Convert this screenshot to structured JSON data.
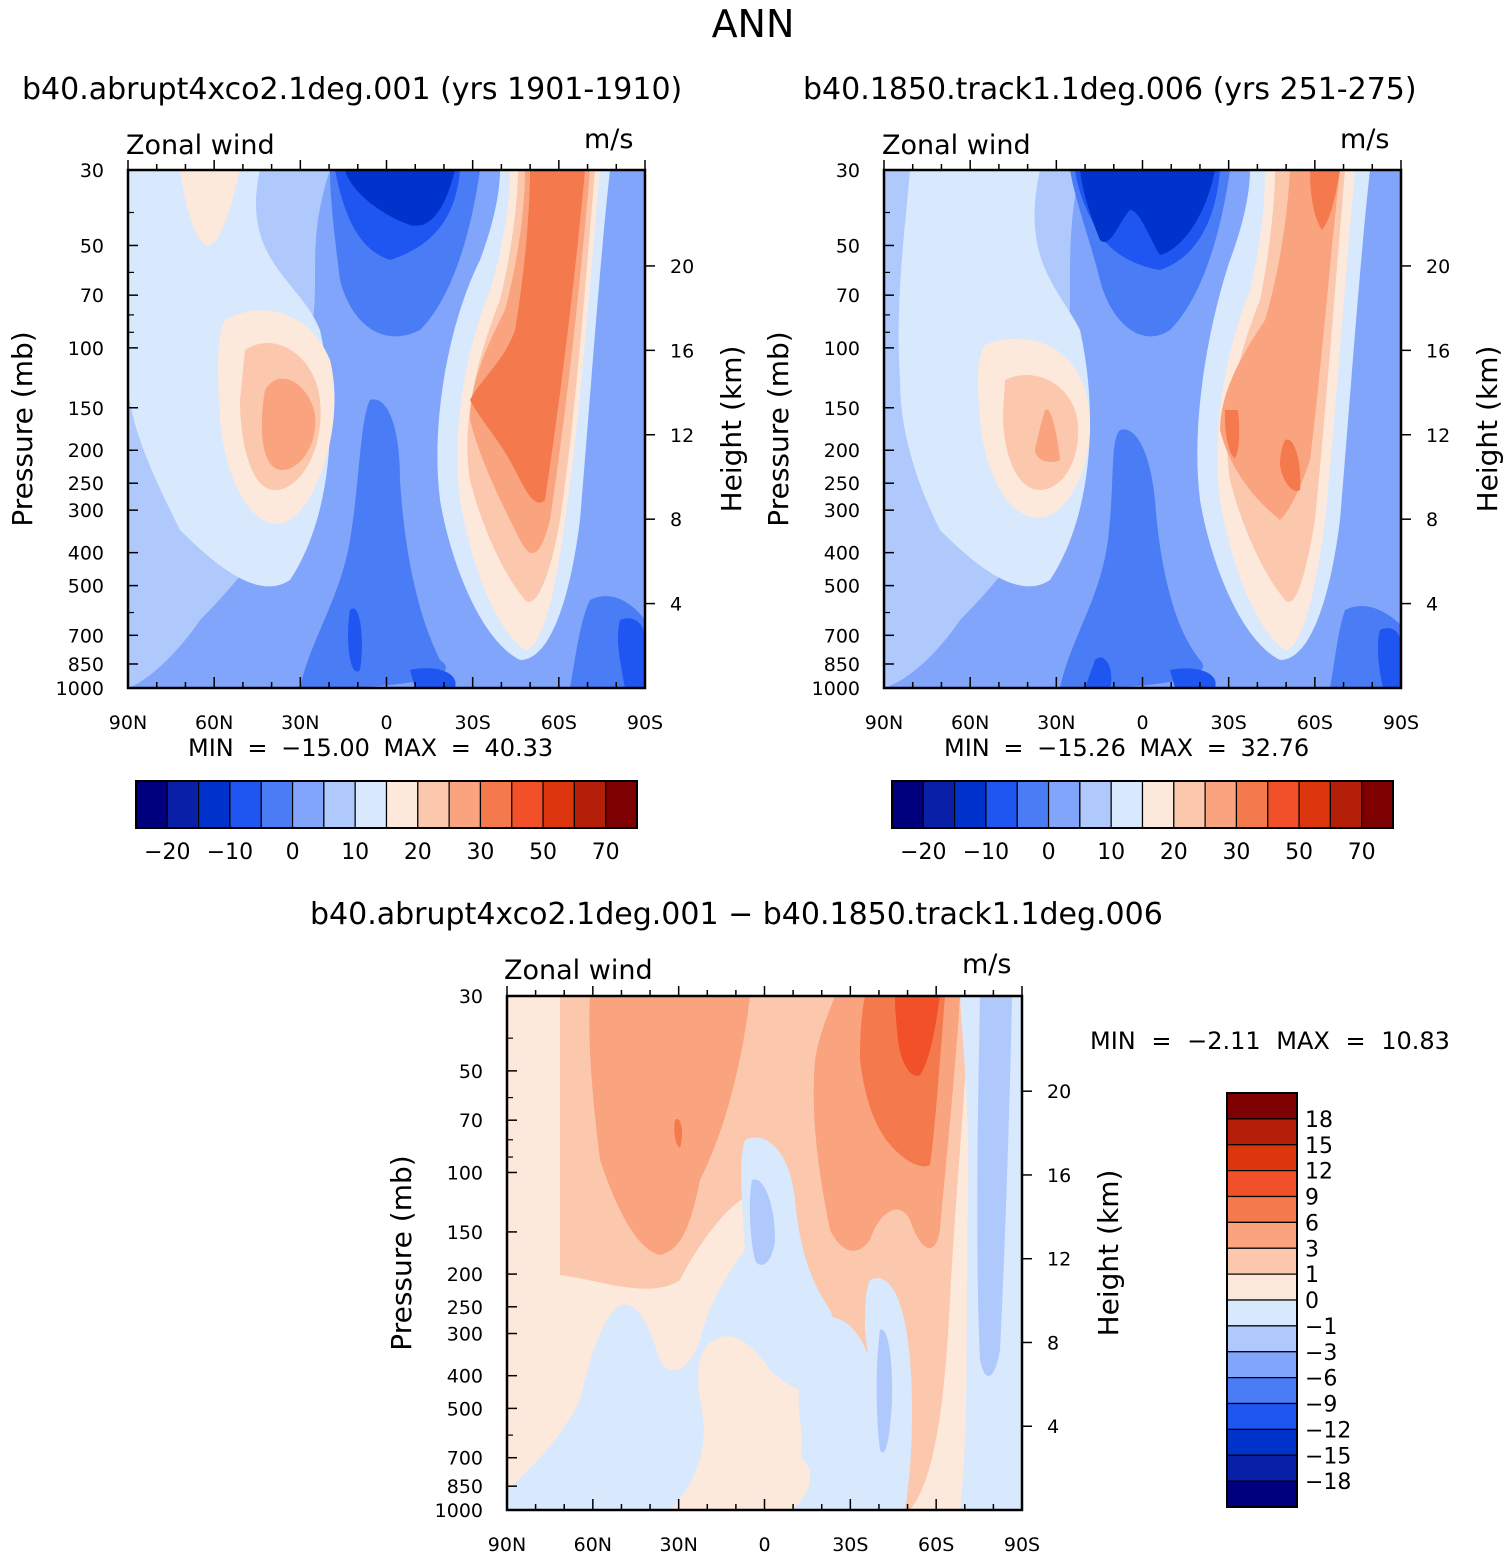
{
  "page": {
    "title": "ANN"
  },
  "chart_data": [
    {
      "type": "heatmap",
      "id": "panel1",
      "title": "b40.abrupt4xco2.1deg.001 (yrs 1901-1910)",
      "left_text": "Zonal wind",
      "units": "m/s",
      "ylabel": "Pressure (mb)",
      "ylabel_right": "Height (km)",
      "min_max": "MIN = −15.00 MAX = 40.33",
      "x_ticks": [
        "90N",
        "60N",
        "30N",
        "0",
        "30S",
        "60S",
        "90S"
      ],
      "y_ticks": [
        "30",
        "50",
        "70",
        "100",
        "150",
        "200",
        "250",
        "300",
        "400",
        "500",
        "700",
        "850",
        "1000"
      ],
      "y_ticks_right": [
        "20",
        "16",
        "12",
        "8",
        "4"
      ],
      "colorbar_labels": [
        "−20",
        "−10",
        "0",
        "10",
        "20",
        "30",
        "50",
        "70"
      ]
    },
    {
      "type": "heatmap",
      "id": "panel2",
      "title": "b40.1850.track1.1deg.006 (yrs 251-275)",
      "left_text": "Zonal wind",
      "units": "m/s",
      "ylabel": "Pressure (mb)",
      "ylabel_right": "Height (km)",
      "min_max": "MIN = −15.26 MAX = 32.76",
      "x_ticks": [
        "90N",
        "60N",
        "30N",
        "0",
        "30S",
        "60S",
        "90S"
      ],
      "y_ticks": [
        "30",
        "50",
        "70",
        "100",
        "150",
        "200",
        "250",
        "300",
        "400",
        "500",
        "700",
        "850",
        "1000"
      ],
      "y_ticks_right": [
        "20",
        "16",
        "12",
        "8",
        "4"
      ],
      "colorbar_labels": [
        "−20",
        "−10",
        "0",
        "10",
        "20",
        "30",
        "50",
        "70"
      ]
    },
    {
      "type": "heatmap",
      "id": "panel3",
      "title": "b40.abrupt4xco2.1deg.001 − b40.1850.track1.1deg.006",
      "left_text": "Zonal wind",
      "units": "m/s",
      "ylabel": "Pressure (mb)",
      "ylabel_right": "Height (km)",
      "min_max": "MIN = −2.11 MAX = 10.83",
      "x_ticks": [
        "90N",
        "60N",
        "30N",
        "0",
        "30S",
        "60S",
        "90S"
      ],
      "y_ticks": [
        "30",
        "50",
        "70",
        "100",
        "150",
        "200",
        "250",
        "300",
        "400",
        "500",
        "700",
        "850",
        "1000"
      ],
      "y_ticks_right": [
        "20",
        "16",
        "12",
        "8",
        "4"
      ],
      "colorbar_labels": [
        "18",
        "15",
        "12",
        "9",
        "6",
        "3",
        "1",
        "0",
        "−1",
        "−3",
        "−6",
        "−9",
        "−12",
        "−15",
        "−18"
      ]
    }
  ],
  "colors": {
    "scale": [
      "#00007f",
      "#0a1fa8",
      "#0033cc",
      "#1f55f0",
      "#4a7cf5",
      "#80a5fa",
      "#b0c9fd",
      "#d8e8fd",
      "#fde9dc",
      "#fcc8ad",
      "#f9a47f",
      "#f47a4e",
      "#f25029",
      "#dd360f",
      "#b41f0a",
      "#7f0000"
    ]
  }
}
